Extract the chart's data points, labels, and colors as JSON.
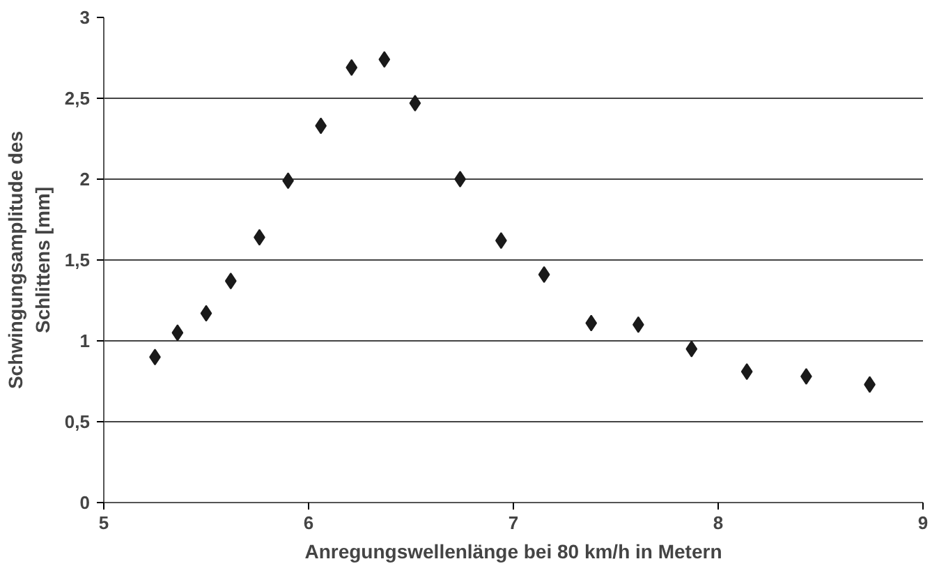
{
  "chart_data": {
    "type": "scatter",
    "xlabel": "Anregungswellenlänge bei 80 km/h in Metern",
    "ylabel": "Schwingungsamplitude des\nSchlittens [mm]",
    "x": [
      5.25,
      5.36,
      5.5,
      5.62,
      5.76,
      5.9,
      6.06,
      6.21,
      6.37,
      6.52,
      6.74,
      6.94,
      7.15,
      7.38,
      7.61,
      7.87,
      8.14,
      8.43,
      8.74
    ],
    "series": [
      {
        "color": "#1a1a1a",
        "values": [
          0.9,
          1.05,
          1.17,
          1.37,
          1.64,
          1.99,
          2.33,
          2.69,
          2.74,
          2.47,
          2.0,
          1.62,
          1.41,
          1.11,
          1.1,
          0.95,
          0.81,
          0.78,
          0.73
        ]
      }
    ],
    "xlim": [
      5,
      9
    ],
    "ylim": [
      0,
      3
    ],
    "xticks": [
      5,
      6,
      7,
      8,
      9
    ],
    "yticks": [
      0,
      {
        "value": 0.5,
        "label": "0,5"
      },
      1,
      {
        "value": 1.5,
        "label": "1,5"
      },
      2,
      {
        "value": 2.5,
        "label": "2,5"
      },
      3
    ],
    "grid": "y",
    "marker": "diamond"
  }
}
